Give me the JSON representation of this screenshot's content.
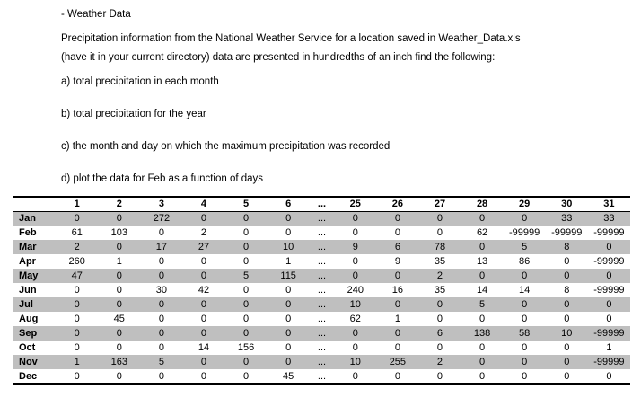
{
  "document": {
    "heading": "- Weather Data",
    "intro_line1": "Precipitation information from the National Weather Service for a location saved in Weather_Data.xls",
    "intro_line2": "(have it in your current directory) data are presented in hundredths of an inch find the following:",
    "items": [
      "a) total precipitation in each month",
      "b) total precipitation for the year",
      "c) the month and day on which the maximum precipitation was recorded",
      "d) plot the data for Feb as a function of days"
    ]
  },
  "table": {
    "columns": [
      "",
      "1",
      "2",
      "3",
      "4",
      "5",
      "6",
      "...",
      "25",
      "26",
      "27",
      "28",
      "29",
      "30",
      "31"
    ],
    "rows": [
      {
        "month": "Jan",
        "values": [
          "0",
          "0",
          "272",
          "0",
          "0",
          "0",
          "...",
          "0",
          "0",
          "0",
          "0",
          "0",
          "33",
          "33"
        ]
      },
      {
        "month": "Feb",
        "values": [
          "61",
          "103",
          "0",
          "2",
          "0",
          "0",
          "...",
          "0",
          "0",
          "0",
          "62",
          "-99999",
          "-99999",
          "-99999"
        ]
      },
      {
        "month": "Mar",
        "values": [
          "2",
          "0",
          "17",
          "27",
          "0",
          "10",
          "...",
          "9",
          "6",
          "78",
          "0",
          "5",
          "8",
          "0"
        ]
      },
      {
        "month": "Apr",
        "values": [
          "260",
          "1",
          "0",
          "0",
          "0",
          "1",
          "...",
          "0",
          "9",
          "35",
          "13",
          "86",
          "0",
          "-99999"
        ]
      },
      {
        "month": "May",
        "values": [
          "47",
          "0",
          "0",
          "0",
          "5",
          "115",
          "...",
          "0",
          "0",
          "2",
          "0",
          "0",
          "0",
          "0"
        ]
      },
      {
        "month": "Jun",
        "values": [
          "0",
          "0",
          "30",
          "42",
          "0",
          "0",
          "...",
          "240",
          "16",
          "35",
          "14",
          "14",
          "8",
          "-99999"
        ]
      },
      {
        "month": "Jul",
        "values": [
          "0",
          "0",
          "0",
          "0",
          "0",
          "0",
          "...",
          "10",
          "0",
          "0",
          "5",
          "0",
          "0",
          "0"
        ]
      },
      {
        "month": "Aug",
        "values": [
          "0",
          "45",
          "0",
          "0",
          "0",
          "0",
          "...",
          "62",
          "1",
          "0",
          "0",
          "0",
          "0",
          "0"
        ]
      },
      {
        "month": "Sep",
        "values": [
          "0",
          "0",
          "0",
          "0",
          "0",
          "0",
          "...",
          "0",
          "0",
          "6",
          "138",
          "58",
          "10",
          "-99999"
        ]
      },
      {
        "month": "Oct",
        "values": [
          "0",
          "0",
          "0",
          "14",
          "156",
          "0",
          "...",
          "0",
          "0",
          "0",
          "0",
          "0",
          "0",
          "1"
        ]
      },
      {
        "month": "Nov",
        "values": [
          "1",
          "163",
          "5",
          "0",
          "0",
          "0",
          "...",
          "10",
          "255",
          "2",
          "0",
          "0",
          "0",
          "-99999"
        ]
      },
      {
        "month": "Dec",
        "values": [
          "0",
          "0",
          "0",
          "0",
          "0",
          "45",
          "...",
          "0",
          "0",
          "0",
          "0",
          "0",
          "0",
          "0"
        ]
      }
    ],
    "shaded_months": [
      "Jan",
      "Mar",
      "May",
      "Jul",
      "Sep",
      "Nov"
    ]
  },
  "colors": {
    "row_shade": "#bfbfbf",
    "border": "#000000",
    "background": "#ffffff"
  }
}
